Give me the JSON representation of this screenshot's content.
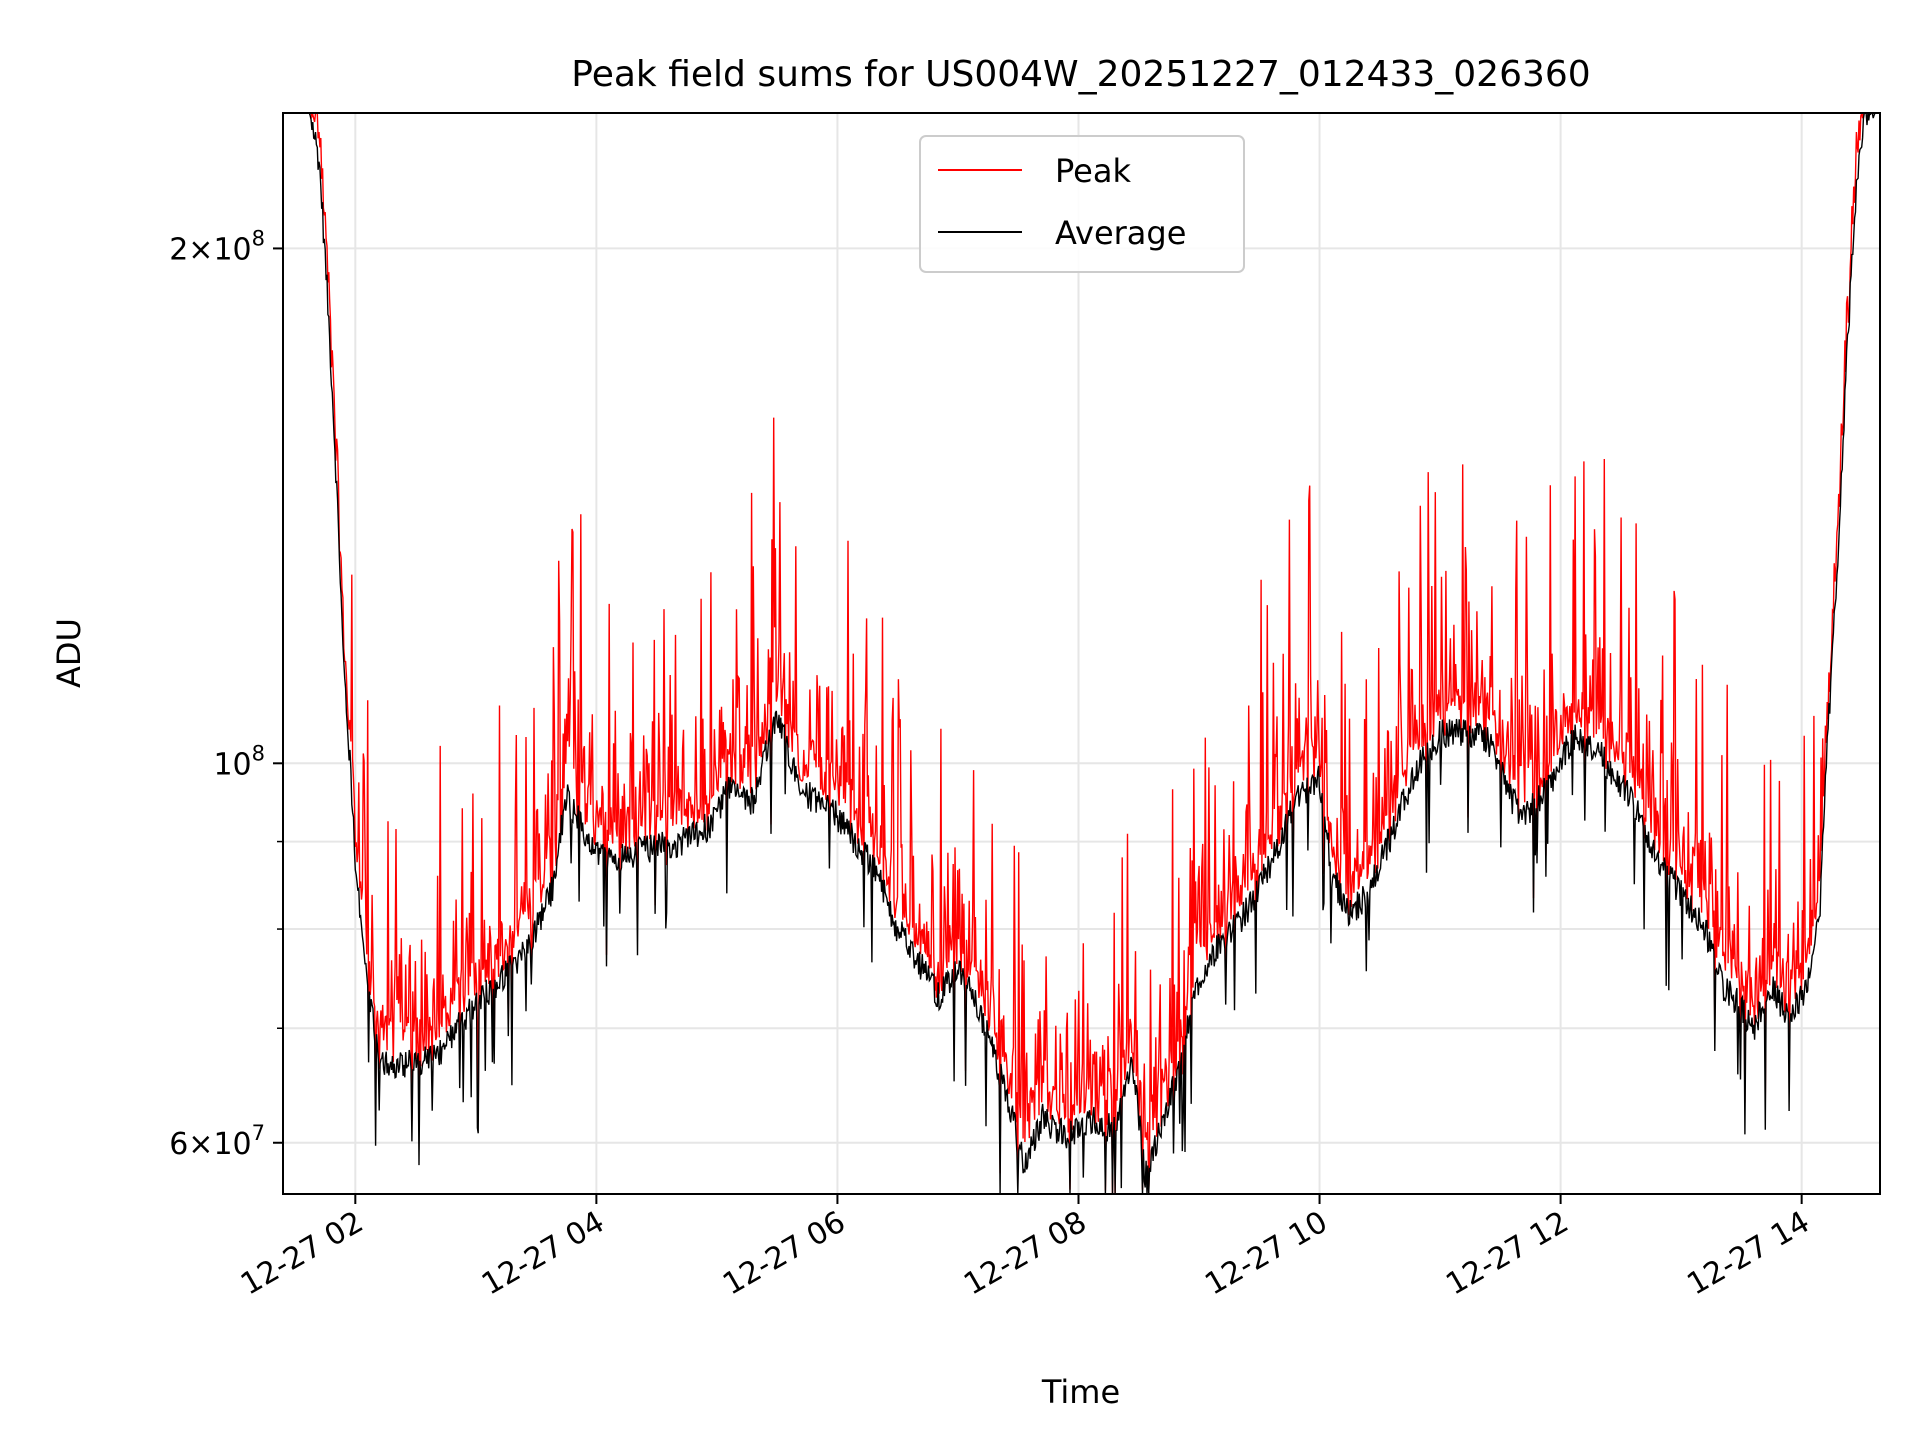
{
  "chart_data": {
    "type": "line",
    "title": "Peak field sums for US004W_20251227_012433_026360",
    "xlabel": "Time",
    "ylabel": "ADU",
    "yscale": "log",
    "ylim": [
      56000000,
      240000000
    ],
    "xlim_hours": [
      1.4,
      14.65
    ],
    "grid": true,
    "legend_placement": "upper center",
    "x_ticks": [
      {
        "hour": 2,
        "label": "12-27 02"
      },
      {
        "hour": 4,
        "label": "12-27 04"
      },
      {
        "hour": 6,
        "label": "12-27 06"
      },
      {
        "hour": 8,
        "label": "12-27 08"
      },
      {
        "hour": 10,
        "label": "12-27 10"
      },
      {
        "hour": 12,
        "label": "12-27 12"
      },
      {
        "hour": 14,
        "label": "12-27 14"
      }
    ],
    "y_major_ticks": [
      {
        "value": 60000000,
        "mantissa": "6",
        "exponent": "7"
      },
      {
        "value": 100000000,
        "mantissa": "",
        "exponent": "8"
      },
      {
        "value": 200000000,
        "mantissa": "2",
        "exponent": "8"
      }
    ],
    "y_minor_ticks": [
      70000000,
      80000000,
      90000000
    ],
    "times_label": "12-27 hh (hours)",
    "average_profile": [
      [
        1.42,
        245000000
      ],
      [
        1.6,
        245000000
      ],
      [
        1.7,
        225000000
      ],
      [
        1.8,
        170000000
      ],
      [
        1.9,
        115000000
      ],
      [
        2.0,
        88000000
      ],
      [
        2.1,
        74000000
      ],
      [
        2.2,
        67500000
      ],
      [
        2.3,
        66500000
      ],
      [
        2.5,
        67000000
      ],
      [
        2.7,
        67500000
      ],
      [
        2.9,
        71000000
      ],
      [
        3.1,
        73500000
      ],
      [
        3.3,
        76000000
      ],
      [
        3.5,
        80000000
      ],
      [
        3.65,
        85000000
      ],
      [
        3.75,
        96000000
      ],
      [
        3.9,
        91000000
      ],
      [
        4.1,
        87500000
      ],
      [
        4.4,
        89000000
      ],
      [
        4.7,
        90000000
      ],
      [
        4.95,
        92000000
      ],
      [
        5.1,
        97000000
      ],
      [
        5.3,
        95000000
      ],
      [
        5.5,
        107000000
      ],
      [
        5.7,
        96000000
      ],
      [
        5.9,
        95000000
      ],
      [
        6.1,
        91000000
      ],
      [
        6.3,
        87000000
      ],
      [
        6.5,
        80000000
      ],
      [
        6.7,
        76000000
      ],
      [
        6.85,
        73000000
      ],
      [
        7.0,
        76000000
      ],
      [
        7.2,
        71000000
      ],
      [
        7.4,
        64000000
      ],
      [
        7.55,
        58000000
      ],
      [
        7.7,
        62000000
      ],
      [
        7.9,
        60500000
      ],
      [
        8.1,
        62000000
      ],
      [
        8.3,
        61000000
      ],
      [
        8.45,
        67000000
      ],
      [
        8.55,
        57500000
      ],
      [
        8.7,
        61500000
      ],
      [
        8.85,
        67000000
      ],
      [
        9.0,
        75000000
      ],
      [
        9.2,
        79000000
      ],
      [
        9.4,
        82000000
      ],
      [
        9.6,
        87500000
      ],
      [
        9.8,
        95000000
      ],
      [
        10.0,
        98000000
      ],
      [
        10.1,
        86000000
      ],
      [
        10.25,
        81500000
      ],
      [
        10.4,
        84000000
      ],
      [
        10.6,
        91000000
      ],
      [
        10.8,
        99000000
      ],
      [
        11.0,
        104000000
      ],
      [
        11.2,
        104500000
      ],
      [
        11.4,
        103000000
      ],
      [
        11.6,
        95000000
      ],
      [
        11.7,
        93000000
      ],
      [
        11.9,
        97000000
      ],
      [
        12.1,
        103500000
      ],
      [
        12.3,
        102000000
      ],
      [
        12.45,
        98000000
      ],
      [
        12.6,
        95000000
      ],
      [
        12.8,
        88000000
      ],
      [
        13.0,
        84000000
      ],
      [
        13.2,
        80000000
      ],
      [
        13.35,
        74000000
      ],
      [
        13.5,
        72000000
      ],
      [
        13.6,
        70000000
      ],
      [
        13.75,
        74000000
      ],
      [
        13.9,
        71000000
      ],
      [
        14.05,
        74000000
      ],
      [
        14.15,
        82000000
      ],
      [
        14.3,
        130000000
      ],
      [
        14.45,
        215000000
      ],
      [
        14.52,
        240000000
      ],
      [
        14.64,
        240000000
      ]
    ],
    "series": [
      {
        "name": "Peak",
        "color": "#ff0000",
        "ratio_baseline": 1.05,
        "spike_ratio_max": 1.5
      },
      {
        "name": "Average",
        "color": "#000000",
        "ratio_baseline": 1.0,
        "dip_ratio_max": 0.85
      }
    ]
  }
}
